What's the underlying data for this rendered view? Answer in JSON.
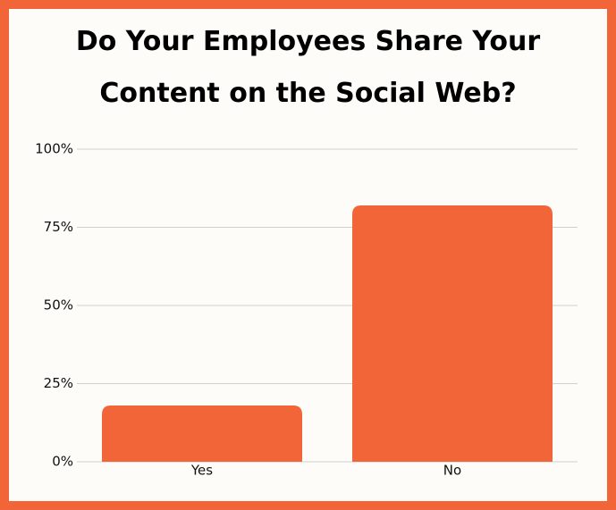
{
  "chart_data": {
    "type": "bar",
    "title": "Do Your Employees Share Your Content on the Social Web?",
    "categories": [
      "Yes",
      "No"
    ],
    "values": [
      18,
      82
    ],
    "color": "#f26538",
    "ylim": [
      0,
      100
    ],
    "yticks": [
      {
        "value": 0,
        "label": "0%"
      },
      {
        "value": 25,
        "label": "25%"
      },
      {
        "value": 50,
        "label": "50%"
      },
      {
        "value": 75,
        "label": "75%"
      },
      {
        "value": 100,
        "label": "100%"
      }
    ],
    "grid": true
  }
}
